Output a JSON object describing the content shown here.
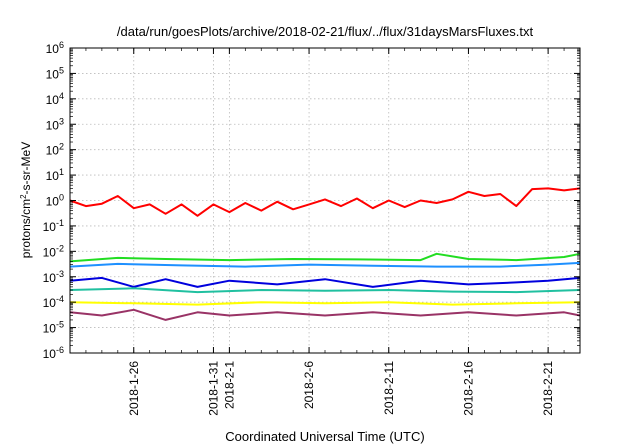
{
  "chart_data": {
    "type": "line",
    "title": "/data/run/goesPlots/archive/2018-02-21/flux/../flux/31daysMarsFluxes.txt",
    "xlabel": "Coordinated Universal Time (UTC)",
    "ylabel_parts": [
      "protons/cm",
      "2",
      "-s-sr-MeV"
    ],
    "y_scale": "log",
    "ylim": [
      1e-06,
      1000000.0
    ],
    "y_ticks": [
      {
        "exp": "-6",
        "value": 1e-06
      },
      {
        "exp": "-5",
        "value": 1e-05
      },
      {
        "exp": "-4",
        "value": 0.0001
      },
      {
        "exp": "-3",
        "value": 0.001
      },
      {
        "exp": "-2",
        "value": 0.01
      },
      {
        "exp": "-1",
        "value": 0.1
      },
      {
        "exp": "0",
        "value": 1
      },
      {
        "exp": "1",
        "value": 10
      },
      {
        "exp": "2",
        "value": 100
      },
      {
        "exp": "3",
        "value": 1000
      },
      {
        "exp": "4",
        "value": 10000
      },
      {
        "exp": "5",
        "value": 100000
      },
      {
        "exp": "6",
        "value": 1000000
      }
    ],
    "y_tick_base": "10",
    "xlim": [
      "2018-01-22",
      "2018-02-23"
    ],
    "x_ticks": [
      {
        "date": "2018-01-26",
        "label": "2018-1-26"
      },
      {
        "date": "2018-01-31",
        "label": "2018-1-31"
      },
      {
        "date": "2018-02-01",
        "label": "2018-2-1"
      },
      {
        "date": "2018-02-06",
        "label": "2018-2-6"
      },
      {
        "date": "2018-02-11",
        "label": "2018-2-11"
      },
      {
        "date": "2018-02-16",
        "label": "2018-2-16"
      },
      {
        "date": "2018-02-21",
        "label": "2018-2-21"
      }
    ],
    "grid": true,
    "series": [
      {
        "color": "#ff0000",
        "values": [
          {
            "x": "2018-01-22",
            "y": 1.0
          },
          {
            "x": "2018-01-23",
            "y": 0.6
          },
          {
            "x": "2018-01-24",
            "y": 0.75
          },
          {
            "x": "2018-01-25",
            "y": 1.5
          },
          {
            "x": "2018-01-26",
            "y": 0.5
          },
          {
            "x": "2018-01-27",
            "y": 0.7
          },
          {
            "x": "2018-01-28",
            "y": 0.3
          },
          {
            "x": "2018-01-29",
            "y": 0.7
          },
          {
            "x": "2018-01-30",
            "y": 0.25
          },
          {
            "x": "2018-01-31",
            "y": 0.7
          },
          {
            "x": "2018-02-01",
            "y": 0.35
          },
          {
            "x": "2018-02-02",
            "y": 0.8
          },
          {
            "x": "2018-02-03",
            "y": 0.4
          },
          {
            "x": "2018-02-04",
            "y": 0.9
          },
          {
            "x": "2018-02-05",
            "y": 0.45
          },
          {
            "x": "2018-02-06",
            "y": 0.7
          },
          {
            "x": "2018-02-07",
            "y": 1.1
          },
          {
            "x": "2018-02-08",
            "y": 0.6
          },
          {
            "x": "2018-02-09",
            "y": 1.2
          },
          {
            "x": "2018-02-10",
            "y": 0.5
          },
          {
            "x": "2018-02-11",
            "y": 1.0
          },
          {
            "x": "2018-02-12",
            "y": 0.55
          },
          {
            "x": "2018-02-13",
            "y": 1.0
          },
          {
            "x": "2018-02-14",
            "y": 0.8
          },
          {
            "x": "2018-02-15",
            "y": 1.1
          },
          {
            "x": "2018-02-16",
            "y": 2.2
          },
          {
            "x": "2018-02-17",
            "y": 1.5
          },
          {
            "x": "2018-02-18",
            "y": 1.8
          },
          {
            "x": "2018-02-19",
            "y": 0.6
          },
          {
            "x": "2018-02-20",
            "y": 2.8
          },
          {
            "x": "2018-02-21",
            "y": 3.0
          },
          {
            "x": "2018-02-22",
            "y": 2.5
          },
          {
            "x": "2018-02-23",
            "y": 3.0
          }
        ]
      },
      {
        "color": "#22dd22",
        "values": [
          {
            "x": "2018-01-22",
            "y": 0.004
          },
          {
            "x": "2018-01-25",
            "y": 0.0055
          },
          {
            "x": "2018-01-28",
            "y": 0.005
          },
          {
            "x": "2018-02-01",
            "y": 0.0045
          },
          {
            "x": "2018-02-05",
            "y": 0.005
          },
          {
            "x": "2018-02-09",
            "y": 0.0048
          },
          {
            "x": "2018-02-13",
            "y": 0.0045
          },
          {
            "x": "2018-02-14",
            "y": 0.008
          },
          {
            "x": "2018-02-16",
            "y": 0.005
          },
          {
            "x": "2018-02-19",
            "y": 0.0045
          },
          {
            "x": "2018-02-22",
            "y": 0.006
          },
          {
            "x": "2018-02-23",
            "y": 0.008
          }
        ]
      },
      {
        "color": "#1e90ff",
        "values": [
          {
            "x": "2018-01-22",
            "y": 0.0025
          },
          {
            "x": "2018-01-25",
            "y": 0.0032
          },
          {
            "x": "2018-01-29",
            "y": 0.0028
          },
          {
            "x": "2018-02-02",
            "y": 0.0025
          },
          {
            "x": "2018-02-06",
            "y": 0.003
          },
          {
            "x": "2018-02-10",
            "y": 0.0027
          },
          {
            "x": "2018-02-14",
            "y": 0.0025
          },
          {
            "x": "2018-02-18",
            "y": 0.0025
          },
          {
            "x": "2018-02-21",
            "y": 0.003
          },
          {
            "x": "2018-02-23",
            "y": 0.0035
          }
        ]
      },
      {
        "color": "#0000dd",
        "values": [
          {
            "x": "2018-01-22",
            "y": 0.0007
          },
          {
            "x": "2018-01-24",
            "y": 0.0009
          },
          {
            "x": "2018-01-26",
            "y": 0.0004
          },
          {
            "x": "2018-01-28",
            "y": 0.0008
          },
          {
            "x": "2018-01-30",
            "y": 0.0004
          },
          {
            "x": "2018-02-01",
            "y": 0.0007
          },
          {
            "x": "2018-02-04",
            "y": 0.0005
          },
          {
            "x": "2018-02-07",
            "y": 0.0008
          },
          {
            "x": "2018-02-10",
            "y": 0.0004
          },
          {
            "x": "2018-02-13",
            "y": 0.0007
          },
          {
            "x": "2018-02-16",
            "y": 0.0005
          },
          {
            "x": "2018-02-19",
            "y": 0.0006
          },
          {
            "x": "2018-02-21",
            "y": 0.0007
          },
          {
            "x": "2018-02-23",
            "y": 0.0009
          }
        ]
      },
      {
        "color": "#20c0a0",
        "values": [
          {
            "x": "2018-01-22",
            "y": 0.0003
          },
          {
            "x": "2018-01-26",
            "y": 0.00035
          },
          {
            "x": "2018-01-30",
            "y": 0.00025
          },
          {
            "x": "2018-02-03",
            "y": 0.0003
          },
          {
            "x": "2018-02-07",
            "y": 0.00028
          },
          {
            "x": "2018-02-11",
            "y": 0.0003
          },
          {
            "x": "2018-02-15",
            "y": 0.00026
          },
          {
            "x": "2018-02-19",
            "y": 0.00025
          },
          {
            "x": "2018-02-23",
            "y": 0.0003
          }
        ]
      },
      {
        "color": "#ffff00",
        "values": [
          {
            "x": "2018-01-22",
            "y": 0.0001
          },
          {
            "x": "2018-01-26",
            "y": 9e-05
          },
          {
            "x": "2018-01-30",
            "y": 8e-05
          },
          {
            "x": "2018-02-03",
            "y": 0.0001
          },
          {
            "x": "2018-02-07",
            "y": 9e-05
          },
          {
            "x": "2018-02-11",
            "y": 0.0001
          },
          {
            "x": "2018-02-15",
            "y": 8e-05
          },
          {
            "x": "2018-02-19",
            "y": 9e-05
          },
          {
            "x": "2018-02-23",
            "y": 0.0001
          }
        ]
      },
      {
        "color": "#993366",
        "values": [
          {
            "x": "2018-01-22",
            "y": 4e-05
          },
          {
            "x": "2018-01-24",
            "y": 3e-05
          },
          {
            "x": "2018-01-26",
            "y": 5e-05
          },
          {
            "x": "2018-01-28",
            "y": 2e-05
          },
          {
            "x": "2018-01-30",
            "y": 4e-05
          },
          {
            "x": "2018-02-01",
            "y": 3e-05
          },
          {
            "x": "2018-02-04",
            "y": 4e-05
          },
          {
            "x": "2018-02-07",
            "y": 3e-05
          },
          {
            "x": "2018-02-10",
            "y": 4e-05
          },
          {
            "x": "2018-02-13",
            "y": 3e-05
          },
          {
            "x": "2018-02-16",
            "y": 4e-05
          },
          {
            "x": "2018-02-19",
            "y": 3e-05
          },
          {
            "x": "2018-02-22",
            "y": 4e-05
          },
          {
            "x": "2018-02-23",
            "y": 3e-05
          }
        ]
      }
    ]
  }
}
